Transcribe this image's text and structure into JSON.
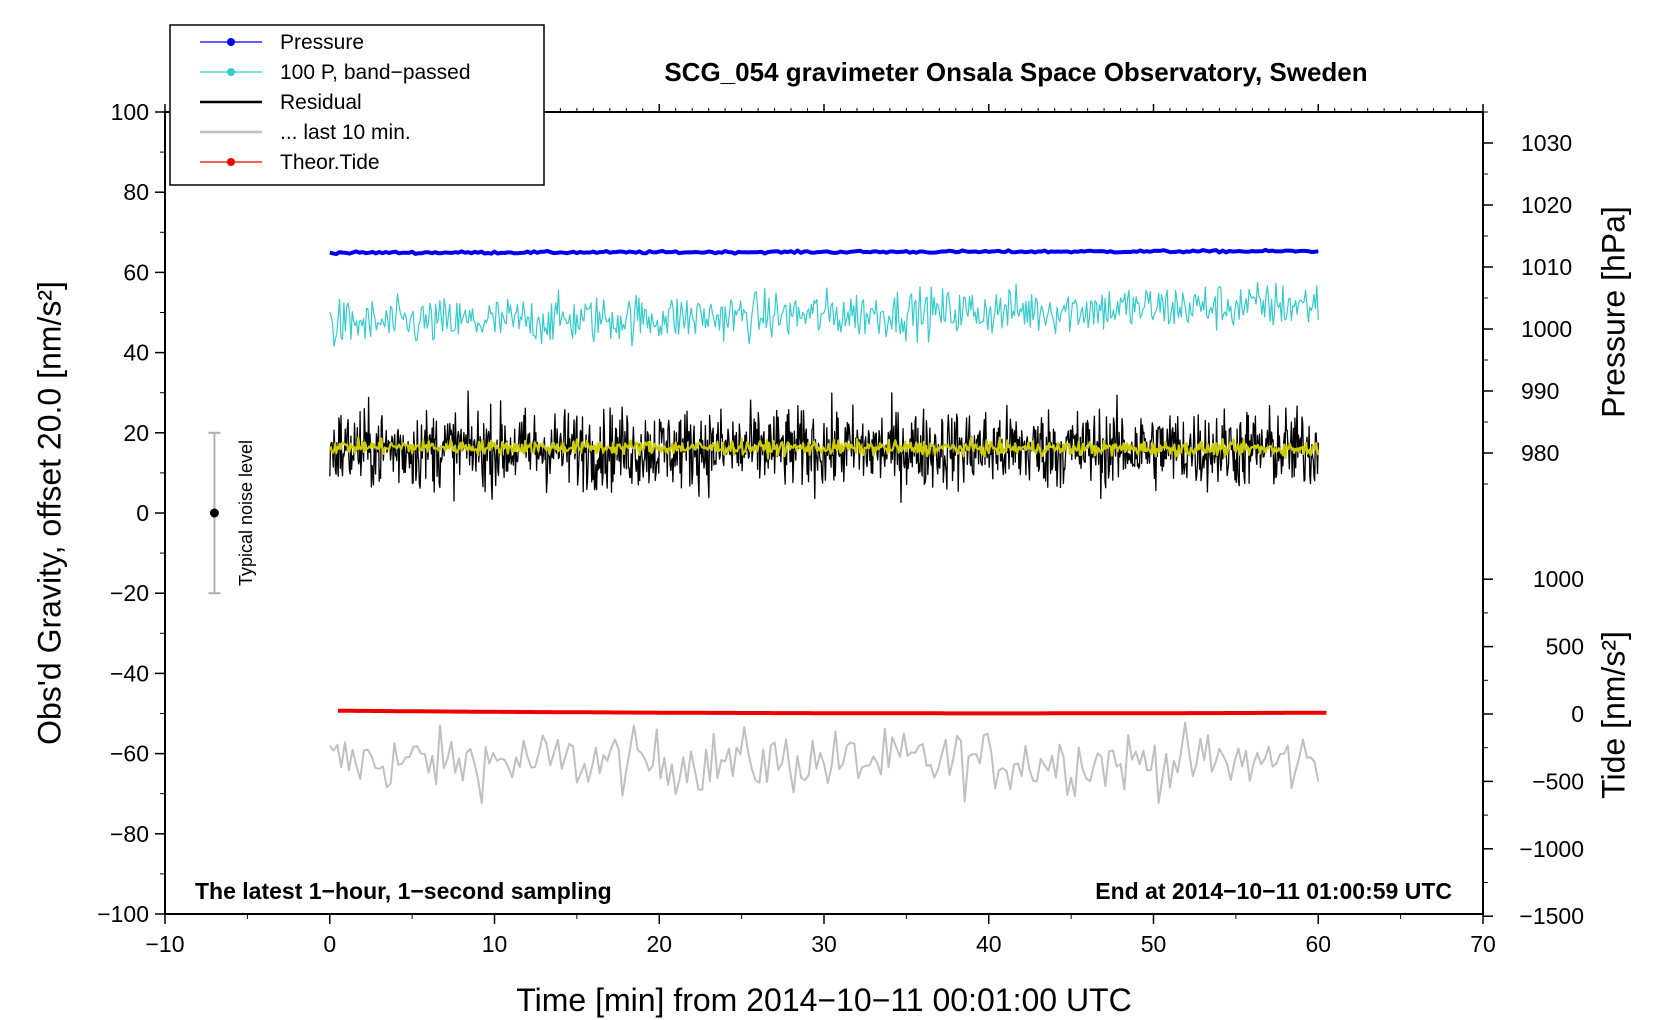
{
  "chart_data": {
    "type": "line",
    "title": "SCG_054 gravimeter Onsala Space Observatory, Sweden",
    "xlabel": "Time [min] from 2014−10−11 00:01:00 UTC",
    "ylabel_left": "Obs'd Gravity, offset 20.0 [nm/s²]",
    "ylabel_pressure": "Pressure [hPa]",
    "ylabel_tide": "Tide [nm/s²]",
    "xlim": [
      -10,
      70
    ],
    "ylim": [
      -100,
      100
    ],
    "x_ticks": [
      "−10",
      "0",
      "10",
      "20",
      "30",
      "40",
      "50",
      "60",
      "70"
    ],
    "y_ticks": [
      "−100",
      "−80",
      "−60",
      "−40",
      "−20",
      "0",
      "20",
      "40",
      "60",
      "80",
      "100"
    ],
    "pressure_ticks": [
      "980",
      "990",
      "1000",
      "1010",
      "1020",
      "1030"
    ],
    "tide_ticks": [
      "−1500",
      "−1000",
      "−500",
      "0",
      "500",
      "1000"
    ],
    "note_left": "The latest 1−hour, 1−second sampling",
    "note_right": "End at 2014−10−11 01:00:59 UTC",
    "noise_label": "Typical noise level",
    "noise_bar": {
      "center": 0,
      "low": -20,
      "high": 20,
      "x": -7
    },
    "legend": [
      {
        "label": "Pressure",
        "color": "#0000ee",
        "marker": true
      },
      {
        "label": "100 P, band−passed",
        "color": "#33cccc",
        "marker": true
      },
      {
        "label": "Residual",
        "color": "#000000",
        "marker": false
      },
      {
        "label": "... last 10 min.",
        "color": "#c0c0c0",
        "marker": false
      },
      {
        "label": "Theor.Tide",
        "color": "#ee0000",
        "marker": true
      }
    ],
    "series": [
      {
        "name": "Pressure",
        "color": "#0000ee",
        "x_range": [
          0,
          60
        ],
        "start": 64.9,
        "end": 65.3,
        "noise": 0.15
      },
      {
        "name": "100 P, band−passed",
        "color": "#33cccc",
        "x_range": [
          0,
          60
        ],
        "start": 47,
        "end": 52,
        "noise": 3.0
      },
      {
        "name": "Residual",
        "color": "#000000",
        "x_range": [
          0,
          60
        ],
        "start": 16,
        "end": 16,
        "noise": 5.0
      },
      {
        "name": "... last 10 min.",
        "color": "#c0c0c0",
        "x_range": [
          0,
          60
        ],
        "start": -62,
        "end": -62,
        "noise": 4.0
      },
      {
        "name": "Theor.Tide",
        "color": "#ee0000",
        "x_range": [
          0.5,
          60.5
        ],
        "start": -49.3,
        "end": -49.8,
        "mid": -50.3
      },
      {
        "name": "smoothed residual",
        "color": "#cccc00",
        "x_range": [
          0,
          60
        ],
        "start": 16.5,
        "end": 16,
        "noise": 0.9
      }
    ]
  }
}
